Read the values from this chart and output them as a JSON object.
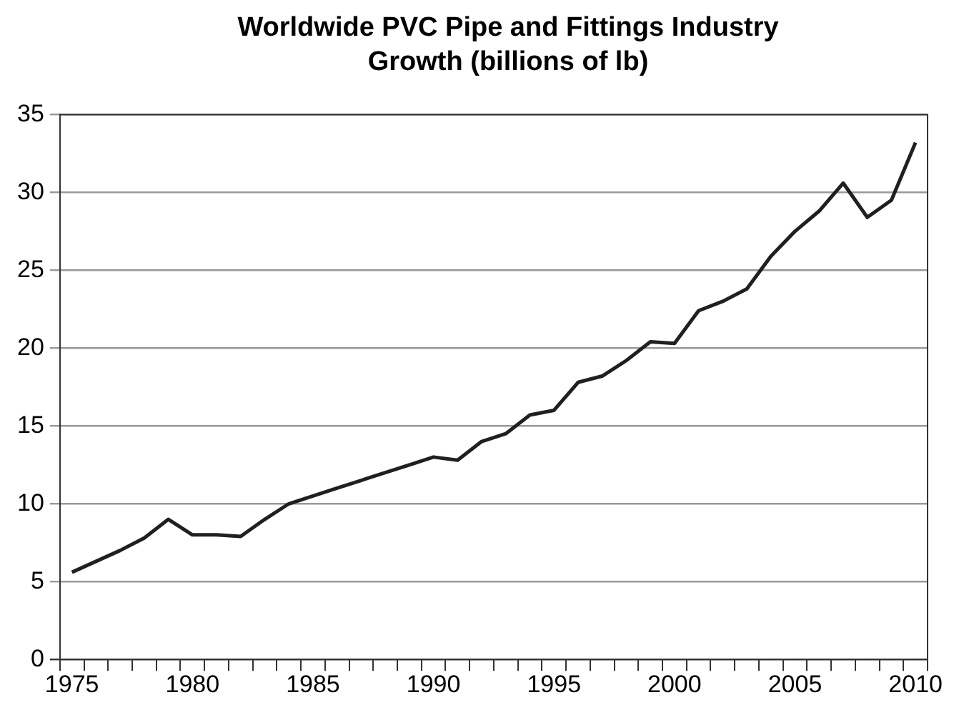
{
  "chart_data": {
    "type": "line",
    "title": "Worldwide PVC Pipe and Fittings Industry Growth (billions of lb)",
    "categories": [
      "1975",
      null,
      null,
      null,
      null,
      "1980",
      null,
      null,
      null,
      null,
      "1985",
      null,
      null,
      null,
      null,
      "1990",
      null,
      null,
      null,
      null,
      "1995",
      null,
      null,
      null,
      null,
      "2000",
      null,
      null,
      null,
      null,
      "2005",
      null,
      null,
      null,
      null,
      "2010"
    ],
    "series": [
      {
        "color": "#231f20",
        "values": [
          5.6,
          6.3,
          7.0,
          7.8,
          9.0,
          8.0,
          8.0,
          7.9,
          9.0,
          10.0,
          10.5,
          11.0,
          11.5,
          12.0,
          12.5,
          13.0,
          12.8,
          14.0,
          14.5,
          15.7,
          16.0,
          17.8,
          18.2,
          19.2,
          20.4,
          20.3,
          22.4,
          23.0,
          23.8,
          25.9,
          27.5,
          28.8,
          30.6,
          28.4,
          29.5,
          33.2
        ]
      }
    ],
    "ylim": [
      0,
      35
    ],
    "yticks": [
      0,
      5,
      10,
      15,
      20,
      25,
      30,
      35
    ],
    "grid": "y",
    "legend": false,
    "marker": "none",
    "line_style": "solid"
  }
}
